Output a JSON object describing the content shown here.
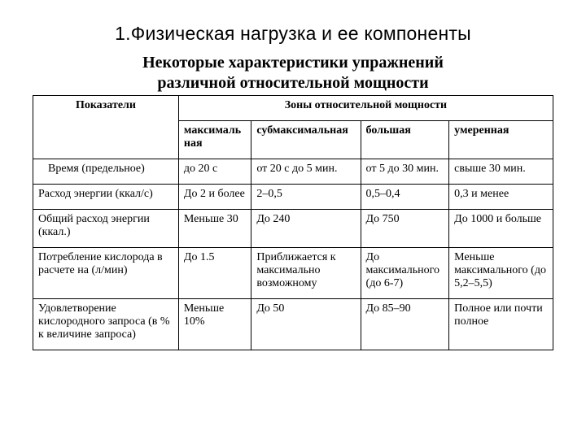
{
  "title": "1.Физическая нагрузка и ее компоненты",
  "subtitle_line1": "Некоторые характеристики упражнений",
  "subtitle_line2": "различной относительной мощности",
  "table": {
    "head": {
      "indicators": "Показатели",
      "zones": "Зоны относительной мощности",
      "sub": {
        "max": "максимальная",
        "submax": "субмаксимальная",
        "big": "большая",
        "moderate": "умеренная"
      }
    },
    "rows": {
      "r0": {
        "label": "Время (предельное)",
        "c1": "до 20 с",
        "c2": "от 20 с до 5 мин.",
        "c3": "от 5 до 30 мин.",
        "c4": "свыше 30 мин."
      },
      "r1": {
        "label": "Расход энергии (ккал/с)",
        "c1": "До 2 и более",
        "c2": "2–0,5",
        "c3": "0,5–0,4",
        "c4": "0,3 и менее"
      },
      "r2": {
        "label": "Общий расход энергии (ккал.)",
        "c1": "Меньше 30",
        "c2": "До 240",
        "c3": "До 750",
        "c4": "До 1000 и больше"
      },
      "r3": {
        "label": "Потребление кислорода в расчете на (л/мин)",
        "c1": "До 1.5",
        "c2": "Приближается к максимально возможному",
        "c3": "До максимального (до 6-7)",
        "c4": "Меньше максимального (до 5,2–5,5)"
      },
      "r4": {
        "label": "Удовлетворение кислородного запроса (в % к величине запроса)",
        "c1": "Меньше 10%",
        "c2": "До 50",
        "c3": "До 85–90",
        "c4": "Полное или почти полное"
      }
    }
  }
}
